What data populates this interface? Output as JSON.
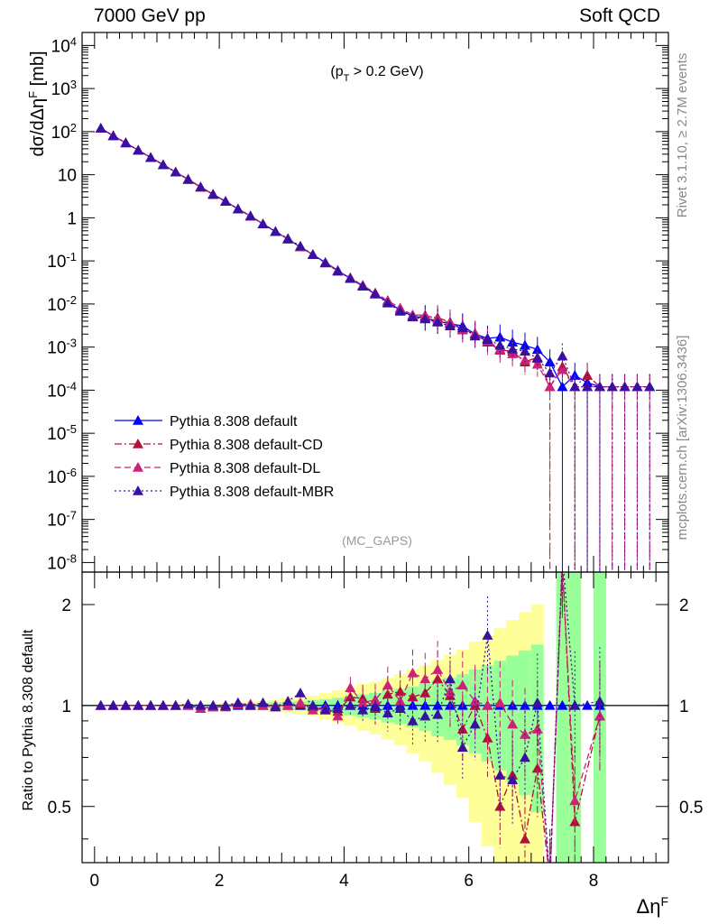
{
  "header": {
    "left": "7000 GeV pp",
    "right": "Soft QCD"
  },
  "side_labels": {
    "upper": "Rivet 3.1.10, ≥ 2.7M events",
    "lower": "mcplots.cern.ch [arXiv:1306.3436]"
  },
  "chart_data": [
    {
      "type": "line",
      "annotation": "(p_T > 0.2 GeV)",
      "watermark": "(MC_GAPS)",
      "ylabel": "dσ/dΔη^F [mb]",
      "yscale": "log",
      "ylim": [
        6e-09,
        20000.0
      ],
      "xlim": [
        -0.2,
        9.2
      ],
      "y_ticks": [
        "10^-8",
        "10^-7",
        "10^-6",
        "10^-5",
        "10^-4",
        "10^-3",
        "10^-2",
        "10^-1",
        "1",
        "10",
        "10^2",
        "10^3",
        "10^4"
      ],
      "series": [
        {
          "name": "Pythia 8.308 default",
          "color": "#0000ff",
          "dash": "solid",
          "x": [
            0.1,
            0.3,
            0.5,
            0.7,
            0.9,
            1.1,
            1.3,
            1.5,
            1.7,
            1.9,
            2.1,
            2.3,
            2.5,
            2.7,
            2.9,
            3.1,
            3.3,
            3.5,
            3.7,
            3.9,
            4.1,
            4.3,
            4.5,
            4.7,
            4.9,
            5.1,
            5.3,
            5.5,
            5.7,
            5.9,
            6.1,
            6.3,
            6.5,
            6.7,
            6.9,
            7.1,
            7.3,
            7.5,
            7.7,
            7.9,
            8.1
          ],
          "y": [
            120,
            80,
            55,
            37,
            25,
            17,
            11.5,
            7.8,
            5.2,
            3.5,
            2.4,
            1.6,
            1.1,
            0.72,
            0.48,
            0.32,
            0.21,
            0.14,
            0.092,
            0.06,
            0.039,
            0.026,
            0.017,
            0.011,
            0.0072,
            0.0052,
            0.0048,
            0.004,
            0.0035,
            0.0031,
            0.002,
            0.0016,
            0.0017,
            0.0013,
            0.0011,
            0.00088,
            0.00045,
            0.00012,
            0.00022,
            0.00015,
            0.00012
          ]
        },
        {
          "name": "Pythia 8.308 default-CD",
          "color": "#b0103a",
          "dash": "dash-dot",
          "x": [
            0.1,
            0.3,
            0.5,
            0.7,
            0.9,
            1.1,
            1.3,
            1.5,
            1.7,
            1.9,
            2.1,
            2.3,
            2.5,
            2.7,
            2.9,
            3.1,
            3.3,
            3.5,
            3.7,
            3.9,
            4.1,
            4.3,
            4.5,
            4.7,
            4.9,
            5.1,
            5.3,
            5.5,
            5.7,
            5.9,
            6.1,
            6.3,
            6.5,
            6.7,
            6.9,
            7.1,
            7.3,
            7.5,
            7.7,
            7.9,
            8.1,
            8.3,
            8.5,
            8.7,
            8.9
          ],
          "y": [
            120,
            80,
            55,
            37,
            25,
            17,
            11.5,
            7.8,
            5.1,
            3.5,
            2.4,
            1.6,
            1.1,
            0.72,
            0.48,
            0.32,
            0.21,
            0.14,
            0.09,
            0.058,
            0.04,
            0.027,
            0.018,
            0.012,
            0.008,
            0.0055,
            0.0052,
            0.0048,
            0.0038,
            0.0026,
            0.002,
            0.0013,
            0.00085,
            0.0008,
            0.00045,
            0.00058,
            0.00012,
            0.00035,
            0.00012,
            0.00022,
            0.00012,
            0.00012,
            0.00012,
            0.00012,
            0.00012
          ]
        },
        {
          "name": "Pythia 8.308 default-DL",
          "color": "#cc2277",
          "dash": "dashed",
          "x": [
            0.1,
            0.3,
            0.5,
            0.7,
            0.9,
            1.1,
            1.3,
            1.5,
            1.7,
            1.9,
            2.1,
            2.3,
            2.5,
            2.7,
            2.9,
            3.1,
            3.3,
            3.5,
            3.7,
            3.9,
            4.1,
            4.3,
            4.5,
            4.7,
            4.9,
            5.1,
            5.3,
            5.5,
            5.7,
            5.9,
            6.1,
            6.3,
            6.5,
            6.7,
            6.9,
            7.1,
            7.3,
            7.5,
            7.7,
            7.9,
            8.1,
            8.3,
            8.5,
            8.7,
            8.9
          ],
          "y": [
            120,
            80,
            55,
            37,
            25,
            17,
            11.5,
            7.8,
            5.1,
            3.5,
            2.4,
            1.6,
            1.1,
            0.72,
            0.48,
            0.32,
            0.21,
            0.14,
            0.09,
            0.058,
            0.041,
            0.027,
            0.018,
            0.012,
            0.008,
            0.0056,
            0.0055,
            0.0045,
            0.0037,
            0.0025,
            0.0021,
            0.0014,
            0.0009,
            0.0007,
            0.0005,
            0.0004,
            0.00012,
            0.0003,
            0.00012,
            0.00012,
            0.00012,
            0.00012,
            0.00012,
            0.00012,
            0.00012
          ]
        },
        {
          "name": "Pythia 8.308 default-MBR",
          "color": "#3a10a0",
          "dash": "dotted",
          "x": [
            0.1,
            0.3,
            0.5,
            0.7,
            0.9,
            1.1,
            1.3,
            1.5,
            1.7,
            1.9,
            2.1,
            2.3,
            2.5,
            2.7,
            2.9,
            3.1,
            3.3,
            3.5,
            3.7,
            3.9,
            4.1,
            4.3,
            4.5,
            4.7,
            4.9,
            5.1,
            5.3,
            5.5,
            5.7,
            5.9,
            6.1,
            6.3,
            6.5,
            6.7,
            6.9,
            7.1,
            7.3,
            7.5,
            7.7,
            7.9,
            8.1,
            8.3,
            8.5,
            8.7,
            8.9
          ],
          "y": [
            120,
            80,
            55,
            37,
            25,
            17,
            11.5,
            7.8,
            5.2,
            3.5,
            2.4,
            1.6,
            1.1,
            0.72,
            0.48,
            0.33,
            0.22,
            0.14,
            0.09,
            0.058,
            0.039,
            0.026,
            0.017,
            0.0105,
            0.0068,
            0.005,
            0.0045,
            0.0038,
            0.0031,
            0.0028,
            0.0018,
            0.0015,
            0.0011,
            0.0009,
            0.0008,
            0.00055,
            0.00025,
            0.00062,
            0.00012,
            0.00012,
            0.00012,
            0.00012,
            0.00012,
            0.00012,
            0.00012
          ]
        }
      ]
    },
    {
      "type": "line",
      "ylabel": "Ratio to Pythia 8.308 default",
      "xlabel": "Δη^F",
      "ylim": [
        0.34,
        2.5
      ],
      "xlim": [
        -0.2,
        9.2
      ],
      "x_ticks": [
        "0",
        "2",
        "4",
        "6",
        "8"
      ],
      "y_ticks": [
        "0.5",
        "1",
        "2"
      ],
      "reference_line": 1,
      "bands": {
        "x": [
          0.1,
          0.3,
          0.5,
          0.7,
          0.9,
          1.1,
          1.3,
          1.5,
          1.7,
          1.9,
          2.1,
          2.3,
          2.5,
          2.7,
          2.9,
          3.1,
          3.3,
          3.5,
          3.7,
          3.9,
          4.1,
          4.3,
          4.5,
          4.7,
          4.9,
          5.1,
          5.3,
          5.5,
          5.7,
          5.9,
          6.1,
          6.3,
          6.5,
          6.7,
          6.9,
          7.1,
          7.3,
          7.5,
          7.7,
          7.9,
          8.1
        ],
        "yellow": [
          0.005,
          0.005,
          0.005,
          0.006,
          0.007,
          0.008,
          0.009,
          0.011,
          0.013,
          0.015,
          0.018,
          0.022,
          0.027,
          0.033,
          0.04,
          0.05,
          0.06,
          0.07,
          0.09,
          0.11,
          0.13,
          0.16,
          0.18,
          0.21,
          0.24,
          0.28,
          0.32,
          0.37,
          0.42,
          0.47,
          0.55,
          0.62,
          0.7,
          0.8,
          0.9,
          1.0,
          0.0,
          2.0,
          2.0,
          0.0,
          2.0
        ],
        "green": [
          0.003,
          0.003,
          0.003,
          0.004,
          0.004,
          0.005,
          0.005,
          0.006,
          0.007,
          0.008,
          0.01,
          0.012,
          0.015,
          0.018,
          0.022,
          0.027,
          0.032,
          0.038,
          0.045,
          0.055,
          0.065,
          0.08,
          0.09,
          0.11,
          0.12,
          0.14,
          0.16,
          0.19,
          0.21,
          0.24,
          0.28,
          0.32,
          0.36,
          0.41,
          0.46,
          0.52,
          0.0,
          1.5,
          1.5,
          0.0,
          1.5
        ]
      },
      "series": [
        {
          "name": "Pythia 8.308 default",
          "color": "#0000ff",
          "x": [
            0.1,
            0.3,
            0.5,
            0.7,
            0.9,
            1.1,
            1.3,
            1.5,
            1.7,
            1.9,
            2.1,
            2.3,
            2.5,
            2.7,
            2.9,
            3.1,
            3.3,
            3.5,
            3.7,
            3.9,
            4.1,
            4.3,
            4.5,
            4.7,
            4.9,
            5.1,
            5.3,
            5.5,
            5.7,
            5.9,
            6.1,
            6.3,
            6.5,
            6.7,
            6.9,
            7.1,
            7.3,
            7.5,
            7.7,
            7.9,
            8.1
          ],
          "y": [
            1,
            1,
            1,
            1,
            1,
            1,
            1,
            1,
            1,
            1,
            1,
            1,
            1,
            1,
            1,
            1,
            1,
            1,
            1,
            1,
            1,
            1,
            1,
            1,
            1,
            1,
            1,
            1,
            1,
            1,
            1,
            1,
            1,
            1,
            1,
            1,
            1,
            1,
            1,
            1,
            1
          ]
        },
        {
          "name": "Pythia 8.308 default-CD",
          "color": "#b0103a",
          "x": [
            0.1,
            0.3,
            0.5,
            0.7,
            0.9,
            1.1,
            1.3,
            1.5,
            1.7,
            1.9,
            2.1,
            2.3,
            2.5,
            2.7,
            2.9,
            3.1,
            3.3,
            3.5,
            3.7,
            3.9,
            4.1,
            4.3,
            4.5,
            4.7,
            4.9,
            5.1,
            5.3,
            5.5,
            5.7,
            5.9,
            6.1,
            6.3,
            6.5,
            6.7,
            6.9,
            7.1,
            7.3,
            7.5,
            7.7,
            8.1
          ],
          "y": [
            1.0,
            1.0,
            1.0,
            1.0,
            1.0,
            1.0,
            1.0,
            1.0,
            0.98,
            0.99,
            0.99,
            1.01,
            1.0,
            1.0,
            0.99,
            1.0,
            1.01,
            0.99,
            0.97,
            0.96,
            1.06,
            1.05,
            0.98,
            1.08,
            1.1,
            1.06,
            1.09,
            1.2,
            1.07,
            0.85,
            1.0,
            0.8,
            0.5,
            0.62,
            0.4,
            0.65,
            0.3,
            2.7,
            0.45,
            0.93
          ]
        },
        {
          "name": "Pythia 8.308 default-DL",
          "color": "#cc2277",
          "x": [
            0.1,
            0.3,
            0.5,
            0.7,
            0.9,
            1.1,
            1.3,
            1.5,
            1.7,
            1.9,
            2.1,
            2.3,
            2.5,
            2.7,
            2.9,
            3.1,
            3.3,
            3.5,
            3.7,
            3.9,
            4.1,
            4.3,
            4.5,
            4.7,
            4.9,
            5.1,
            5.3,
            5.5,
            5.7,
            5.9,
            6.1,
            6.3,
            6.5,
            6.7,
            6.9,
            7.1,
            7.3,
            7.5,
            7.7,
            8.1
          ],
          "y": [
            1.0,
            1.0,
            1.0,
            1.0,
            1.0,
            1.0,
            1.0,
            1.0,
            0.98,
            0.99,
            1.0,
            1.01,
            1.01,
            1.0,
            1.0,
            1.0,
            1.02,
            0.97,
            0.98,
            0.93,
            1.13,
            1.02,
            1.04,
            1.15,
            1.03,
            1.25,
            1.2,
            1.28,
            1.1,
            1.15,
            1.03,
            1.0,
            1.02,
            0.88,
            0.82,
            0.85,
            0.3,
            2.6,
            0.52,
            0.93
          ]
        },
        {
          "name": "Pythia 8.308 default-MBR",
          "color": "#3a10a0",
          "x": [
            0.1,
            0.3,
            0.5,
            0.7,
            0.9,
            1.1,
            1.3,
            1.5,
            1.7,
            1.9,
            2.1,
            2.3,
            2.5,
            2.7,
            2.9,
            3.1,
            3.3,
            3.5,
            3.7,
            3.9,
            4.1,
            4.3,
            4.5,
            4.7,
            4.9,
            5.1,
            5.3,
            5.5,
            5.7,
            5.9,
            6.1,
            6.3,
            6.5,
            6.7,
            6.9,
            7.1,
            7.3,
            7.5,
            7.7,
            8.1
          ],
          "y": [
            1.0,
            1.0,
            1.0,
            1.0,
            1.0,
            1.0,
            1.0,
            1.01,
            1.0,
            1.0,
            1.0,
            1.02,
            1.0,
            1.02,
            0.99,
            1.03,
            1.09,
            1.0,
            0.97,
            0.98,
            1.0,
            0.97,
            0.99,
            0.95,
            0.98,
            0.9,
            0.93,
            0.94,
            1.2,
            0.75,
            0.88,
            1.62,
            0.62,
            0.6,
            0.7,
            1.02,
            0.3,
            2.8,
            1.0,
            1.03
          ]
        }
      ]
    }
  ]
}
